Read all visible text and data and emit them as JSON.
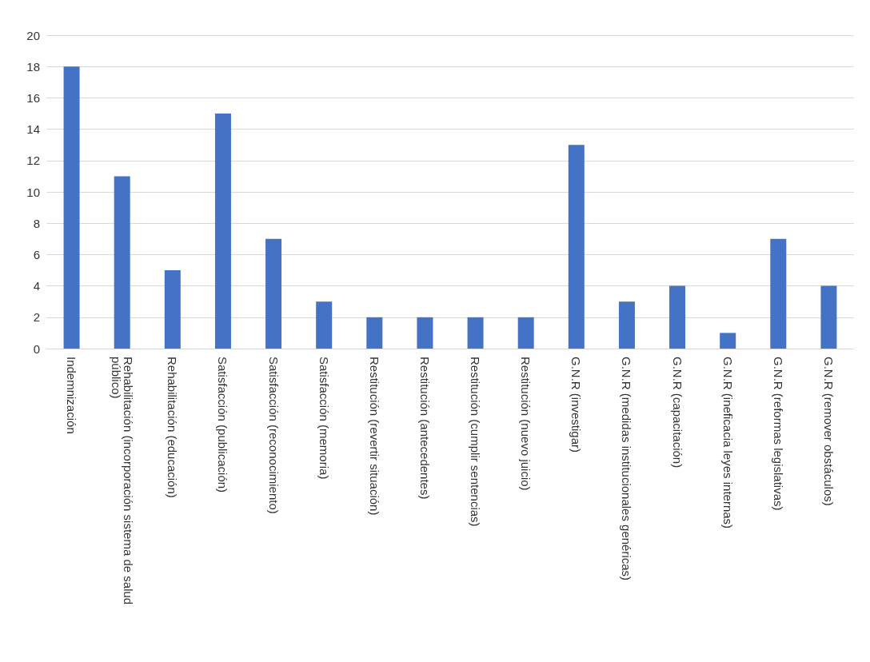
{
  "chart_data": {
    "type": "bar",
    "categories": [
      "Indemnización",
      "Rehabilitación (incorporación sistema de salud público)",
      "Rehabilitación (educación)",
      "Satisfacción (publicación)",
      "Satisfacción (reconocimiento)",
      "Satisfacción (memoria)",
      "Restitución (revertir situación)",
      "Restitución (antecedentes)",
      "Restitución (cumplir sentencias)",
      "Restitución (nuevo juicio)",
      "G.N.R (investigar)",
      "G.N.R (medidas institucionales genéricas)",
      "G.N.R (capacitación)",
      "G.N.R (ineficacia leyes internas)",
      "G.N.R (reformas legislativas)",
      "G.N.R (remover obstáculos)"
    ],
    "values": [
      18,
      11,
      5,
      15,
      7,
      3,
      2,
      2,
      2,
      2,
      13,
      3,
      4,
      1,
      7,
      4
    ],
    "color": "#4472c4",
    "ylim": [
      0,
      20
    ],
    "yticks": [
      0,
      2,
      4,
      6,
      8,
      10,
      12,
      14,
      16,
      18,
      20
    ],
    "grid": "y"
  }
}
